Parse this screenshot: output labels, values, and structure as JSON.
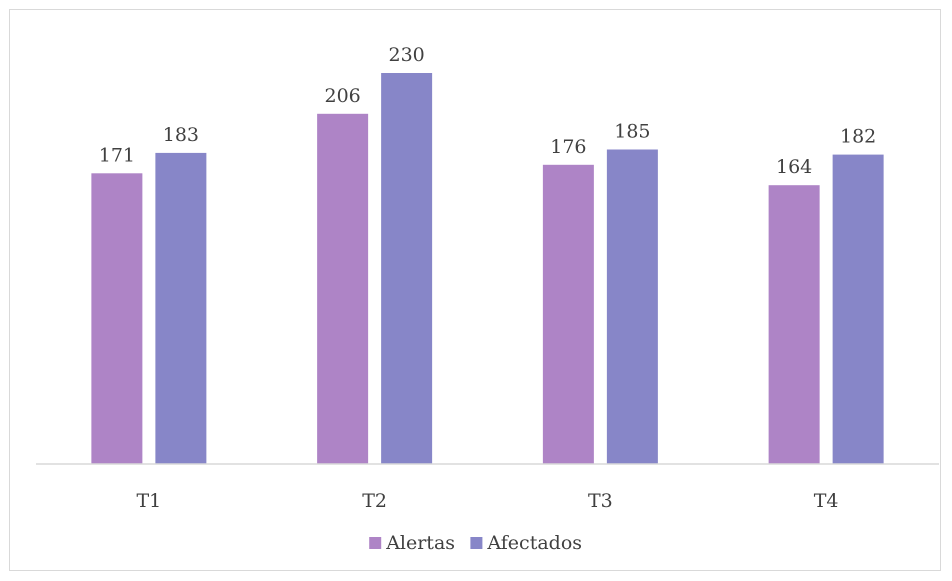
{
  "chart_data": {
    "type": "bar",
    "title": "",
    "xlabel": "",
    "ylabel": "",
    "categories": [
      "T1",
      "T2",
      "T3",
      "T4"
    ],
    "series": [
      {
        "name": "Alertas",
        "values": [
          171,
          206,
          176,
          164
        ],
        "color": "#ae84c6"
      },
      {
        "name": "Afectados",
        "values": [
          183,
          230,
          185,
          182
        ],
        "color": "#8786c8"
      }
    ],
    "ylim": [
      0,
      230
    ],
    "grid": false,
    "legend_position": "bottom",
    "data_labels": true
  }
}
